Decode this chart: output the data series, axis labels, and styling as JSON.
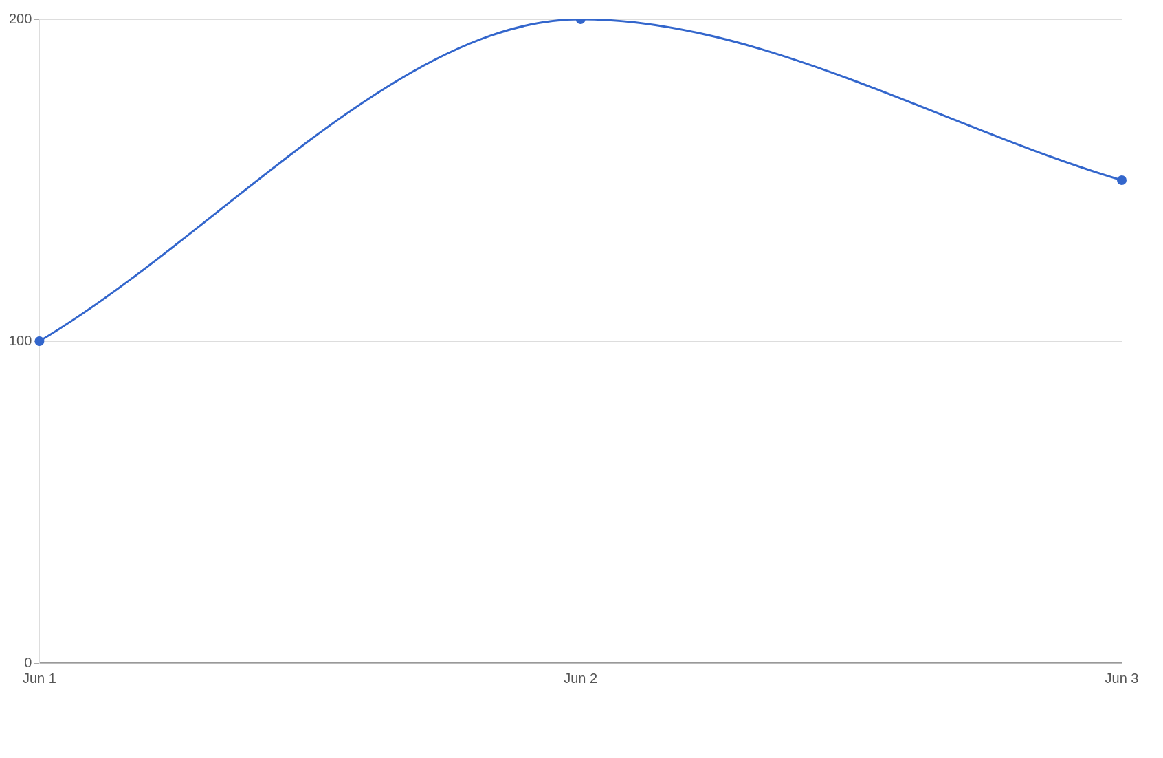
{
  "chart_data": {
    "type": "line",
    "categories": [
      "Jun 1",
      "Jun 2",
      "Jun 3"
    ],
    "series": [
      {
        "color": "#3366cc",
        "values": [
          100,
          200,
          150
        ]
      }
    ],
    "ylim": [
      0,
      200
    ],
    "yticks": [
      0,
      100,
      200
    ],
    "grid": "y",
    "legend": false,
    "marker": "circle",
    "line_style": "solid"
  }
}
